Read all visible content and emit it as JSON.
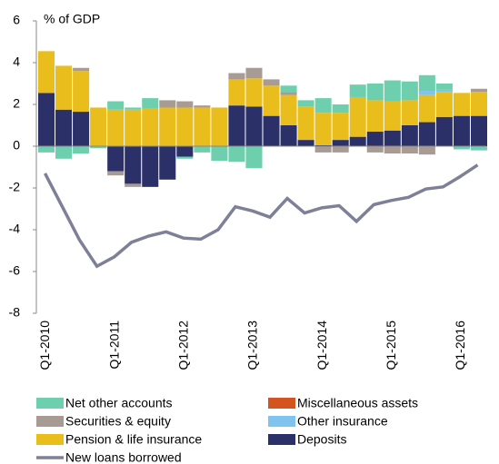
{
  "chart_data": {
    "type": "bar",
    "y_label": "% of GDP",
    "categories": [
      "Q1-2010",
      null,
      null,
      null,
      "Q1-2011",
      null,
      null,
      null,
      "Q1-2012",
      null,
      null,
      null,
      "Q1-2013",
      null,
      null,
      null,
      "Q1-2014",
      null,
      null,
      null,
      "Q1-2015",
      null,
      null,
      null,
      "Q1-2016",
      null
    ],
    "ylim": [
      -8,
      6
    ],
    "yticks": [
      -8,
      -6,
      -4,
      -2,
      0,
      2,
      4,
      6
    ],
    "series": [
      {
        "name": "Deposits",
        "color": "#2b3168",
        "values": [
          2.55,
          1.75,
          1.65,
          0,
          -1.2,
          -1.8,
          -1.95,
          -1.6,
          -0.5,
          0,
          0,
          1.95,
          1.9,
          1.45,
          1.0,
          0.3,
          0.05,
          0.3,
          0.45,
          0.7,
          0.75,
          1.0,
          1.15,
          1.4,
          1.45,
          1.45
        ]
      },
      {
        "name": "Pension & life insurance",
        "color": "#e8bd1c",
        "values": [
          2.0,
          2.1,
          1.95,
          1.85,
          1.75,
          1.75,
          1.8,
          1.85,
          1.85,
          1.85,
          1.85,
          1.25,
          1.35,
          1.45,
          1.45,
          1.6,
          1.55,
          1.3,
          1.9,
          1.5,
          1.4,
          1.2,
          1.3,
          1.2,
          1.1,
          1.15
        ]
      },
      {
        "name": "Other insurance",
        "color": "#7fc3ef",
        "values": [
          0,
          0,
          0,
          0,
          0,
          0,
          0,
          0,
          0,
          0,
          0,
          0,
          0,
          0,
          0,
          0,
          0,
          0,
          0,
          0,
          0,
          0,
          0.2,
          0.1,
          0,
          0
        ]
      },
      {
        "name": "Securities & equity",
        "color": "#a79b93",
        "values": [
          0,
          0,
          0.15,
          0,
          -0.2,
          -0.15,
          0,
          0.35,
          0.3,
          0.1,
          0,
          0.3,
          0.5,
          0.3,
          0.15,
          0,
          -0.3,
          -0.3,
          0,
          -0.3,
          -0.35,
          -0.35,
          -0.4,
          0,
          0,
          0.15
        ]
      },
      {
        "name": "Miscellaneous assets",
        "color": "#d4531f",
        "values": [
          0,
          0,
          0,
          0,
          0,
          0,
          0,
          0,
          0,
          0,
          0,
          0,
          0,
          0,
          0,
          0,
          0,
          0,
          0,
          0,
          0,
          0,
          0,
          0,
          0,
          0
        ]
      },
      {
        "name": "Net other accounts",
        "color": "#6dcfae",
        "values": [
          -0.3,
          -0.6,
          -0.35,
          -0.1,
          0.4,
          0.1,
          0.5,
          0,
          -0.1,
          -0.3,
          -0.7,
          -0.75,
          -1.05,
          0,
          0.3,
          0.3,
          0.7,
          0.4,
          0.6,
          0.8,
          1.0,
          0.9,
          0.75,
          0.3,
          -0.15,
          -0.2
        ]
      },
      {
        "name": "New loans borrowed",
        "type": "line",
        "color": "#7e8098",
        "values": [
          -1.3,
          -2.9,
          -4.5,
          -5.75,
          -5.3,
          -4.6,
          -4.3,
          -4.1,
          -4.4,
          -4.45,
          -4.0,
          -2.9,
          -3.1,
          -3.4,
          -2.5,
          -3.2,
          -2.95,
          -2.85,
          -3.6,
          -2.8,
          -2.6,
          -2.45,
          -2.05,
          -1.95,
          -1.45,
          -0.9
        ]
      }
    ],
    "legend_order": [
      5,
      4,
      3,
      2,
      1,
      0,
      6
    ]
  }
}
